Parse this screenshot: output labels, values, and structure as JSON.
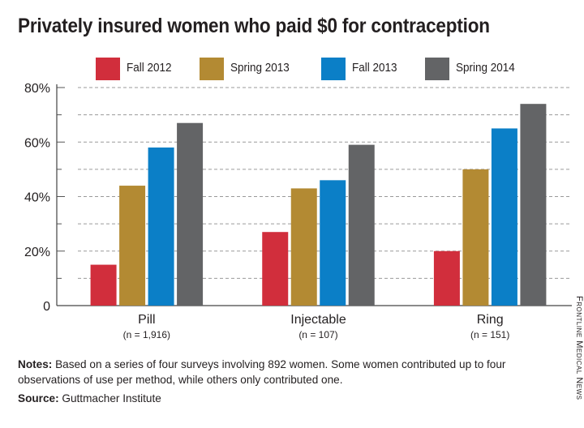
{
  "title": "Privately insured women who paid $0 for contraception",
  "chart_data": {
    "type": "bar",
    "title": "Privately insured women who paid $0 for contraception",
    "categories": [
      "Pill",
      "Injectable",
      "Ring"
    ],
    "category_notes": [
      "(n = 1,916)",
      "(n = 107)",
      "(n = 151)"
    ],
    "series": [
      {
        "name": "Fall 2012",
        "color": "#d12e3c",
        "values": [
          15,
          27,
          20
        ]
      },
      {
        "name": "Spring 2013",
        "color": "#b38a33",
        "values": [
          44,
          43,
          50
        ]
      },
      {
        "name": "Fall 2013",
        "color": "#0b7fc7",
        "values": [
          58,
          46,
          65
        ]
      },
      {
        "name": "Spring 2014",
        "color": "#636466",
        "values": [
          67,
          59,
          74
        ]
      }
    ],
    "yticks": [
      0,
      20,
      40,
      60,
      80
    ],
    "ytick_labels": [
      "0",
      "20%",
      "40%",
      "60%",
      "80%"
    ],
    "ylim": [
      0,
      80
    ],
    "grid": true,
    "legend": "top",
    "xlabel": "",
    "ylabel": ""
  },
  "notes": {
    "label": "Notes:",
    "text": " Based on a series of four surveys involving 892 women. Some women contributed up to four observations of use per method, while others only contributed one."
  },
  "source": {
    "label": "Source:",
    "text": " Guttmacher Institute"
  },
  "credit": "Frontline Medical News"
}
